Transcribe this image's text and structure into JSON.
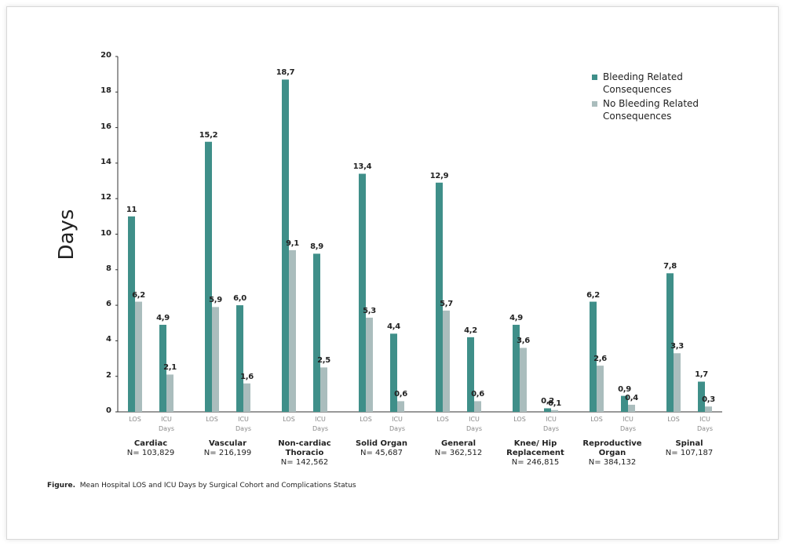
{
  "chart_data": {
    "type": "bar",
    "y_label": "Days",
    "categories": [
      "LOS",
      "ICU Days",
      "LOS",
      "ICU Days",
      "LOS",
      "ICU Days",
      "LOS",
      "ICU Days",
      "LOS",
      "ICU Days",
      "LOS",
      "ICU Days",
      "LOS",
      "ICU Days",
      "LOS",
      "ICU Days"
    ],
    "groups": [
      {
        "name": "Cardiac",
        "n": "N= 103,829"
      },
      {
        "name": "Vascular",
        "n": "N= 216,199"
      },
      {
        "name": "Non-cardiac Thoracio",
        "n": "N= 142,562"
      },
      {
        "name": "Solid Organ",
        "n": "N= 45,687"
      },
      {
        "name": "General",
        "n": "N= 362,512"
      },
      {
        "name": "Knee/ Hip Replacement",
        "n": "N= 246,815"
      },
      {
        "name": "Reproductive Organ",
        "n": "N= 384,132"
      },
      {
        "name": "Spinal",
        "n": "N= 107,187"
      }
    ],
    "series": [
      {
        "name": "Bleeding Related Consequences",
        "color": "#3f8f89",
        "values": [
          11,
          4.9,
          15.2,
          6.0,
          18.7,
          8.9,
          13.4,
          4.4,
          12.9,
          4.2,
          4.9,
          0.2,
          6.2,
          0.9,
          7.8,
          1.7
        ],
        "value_labels": [
          "11",
          "4,9",
          "15,2",
          "6,0",
          "18,7",
          "8,9",
          "13,4",
          "4,4",
          "12,9",
          "4,2",
          "4,9",
          "0,2",
          "6,2",
          "0,9",
          "7,8",
          "1,7"
        ]
      },
      {
        "name": "No Bleeding Related Consequences",
        "color": "#aabdbd",
        "values": [
          6.2,
          2.1,
          5.9,
          1.6,
          9.1,
          2.5,
          5.3,
          0.6,
          5.7,
          0.6,
          3.6,
          0.1,
          2.6,
          0.4,
          3.3,
          0.3
        ],
        "value_labels": [
          "6,2",
          "2,1",
          "5,9",
          "1,6",
          "9,1",
          "2,5",
          "5,3",
          "0,6",
          "5,7",
          "0,6",
          "3,6",
          "0,1",
          "2,6",
          "0,4",
          "3,3",
          "0,3"
        ]
      }
    ],
    "ylim": [
      0,
      20
    ],
    "yticks": [
      0,
      2,
      4,
      6,
      8,
      10,
      12,
      14,
      16,
      18,
      20
    ],
    "grid": false,
    "legend": "top-right",
    "caption_label": "Figure.",
    "caption": "Mean Hospital LOS and ICU Days by Surgical Cohort and Complications Status"
  }
}
